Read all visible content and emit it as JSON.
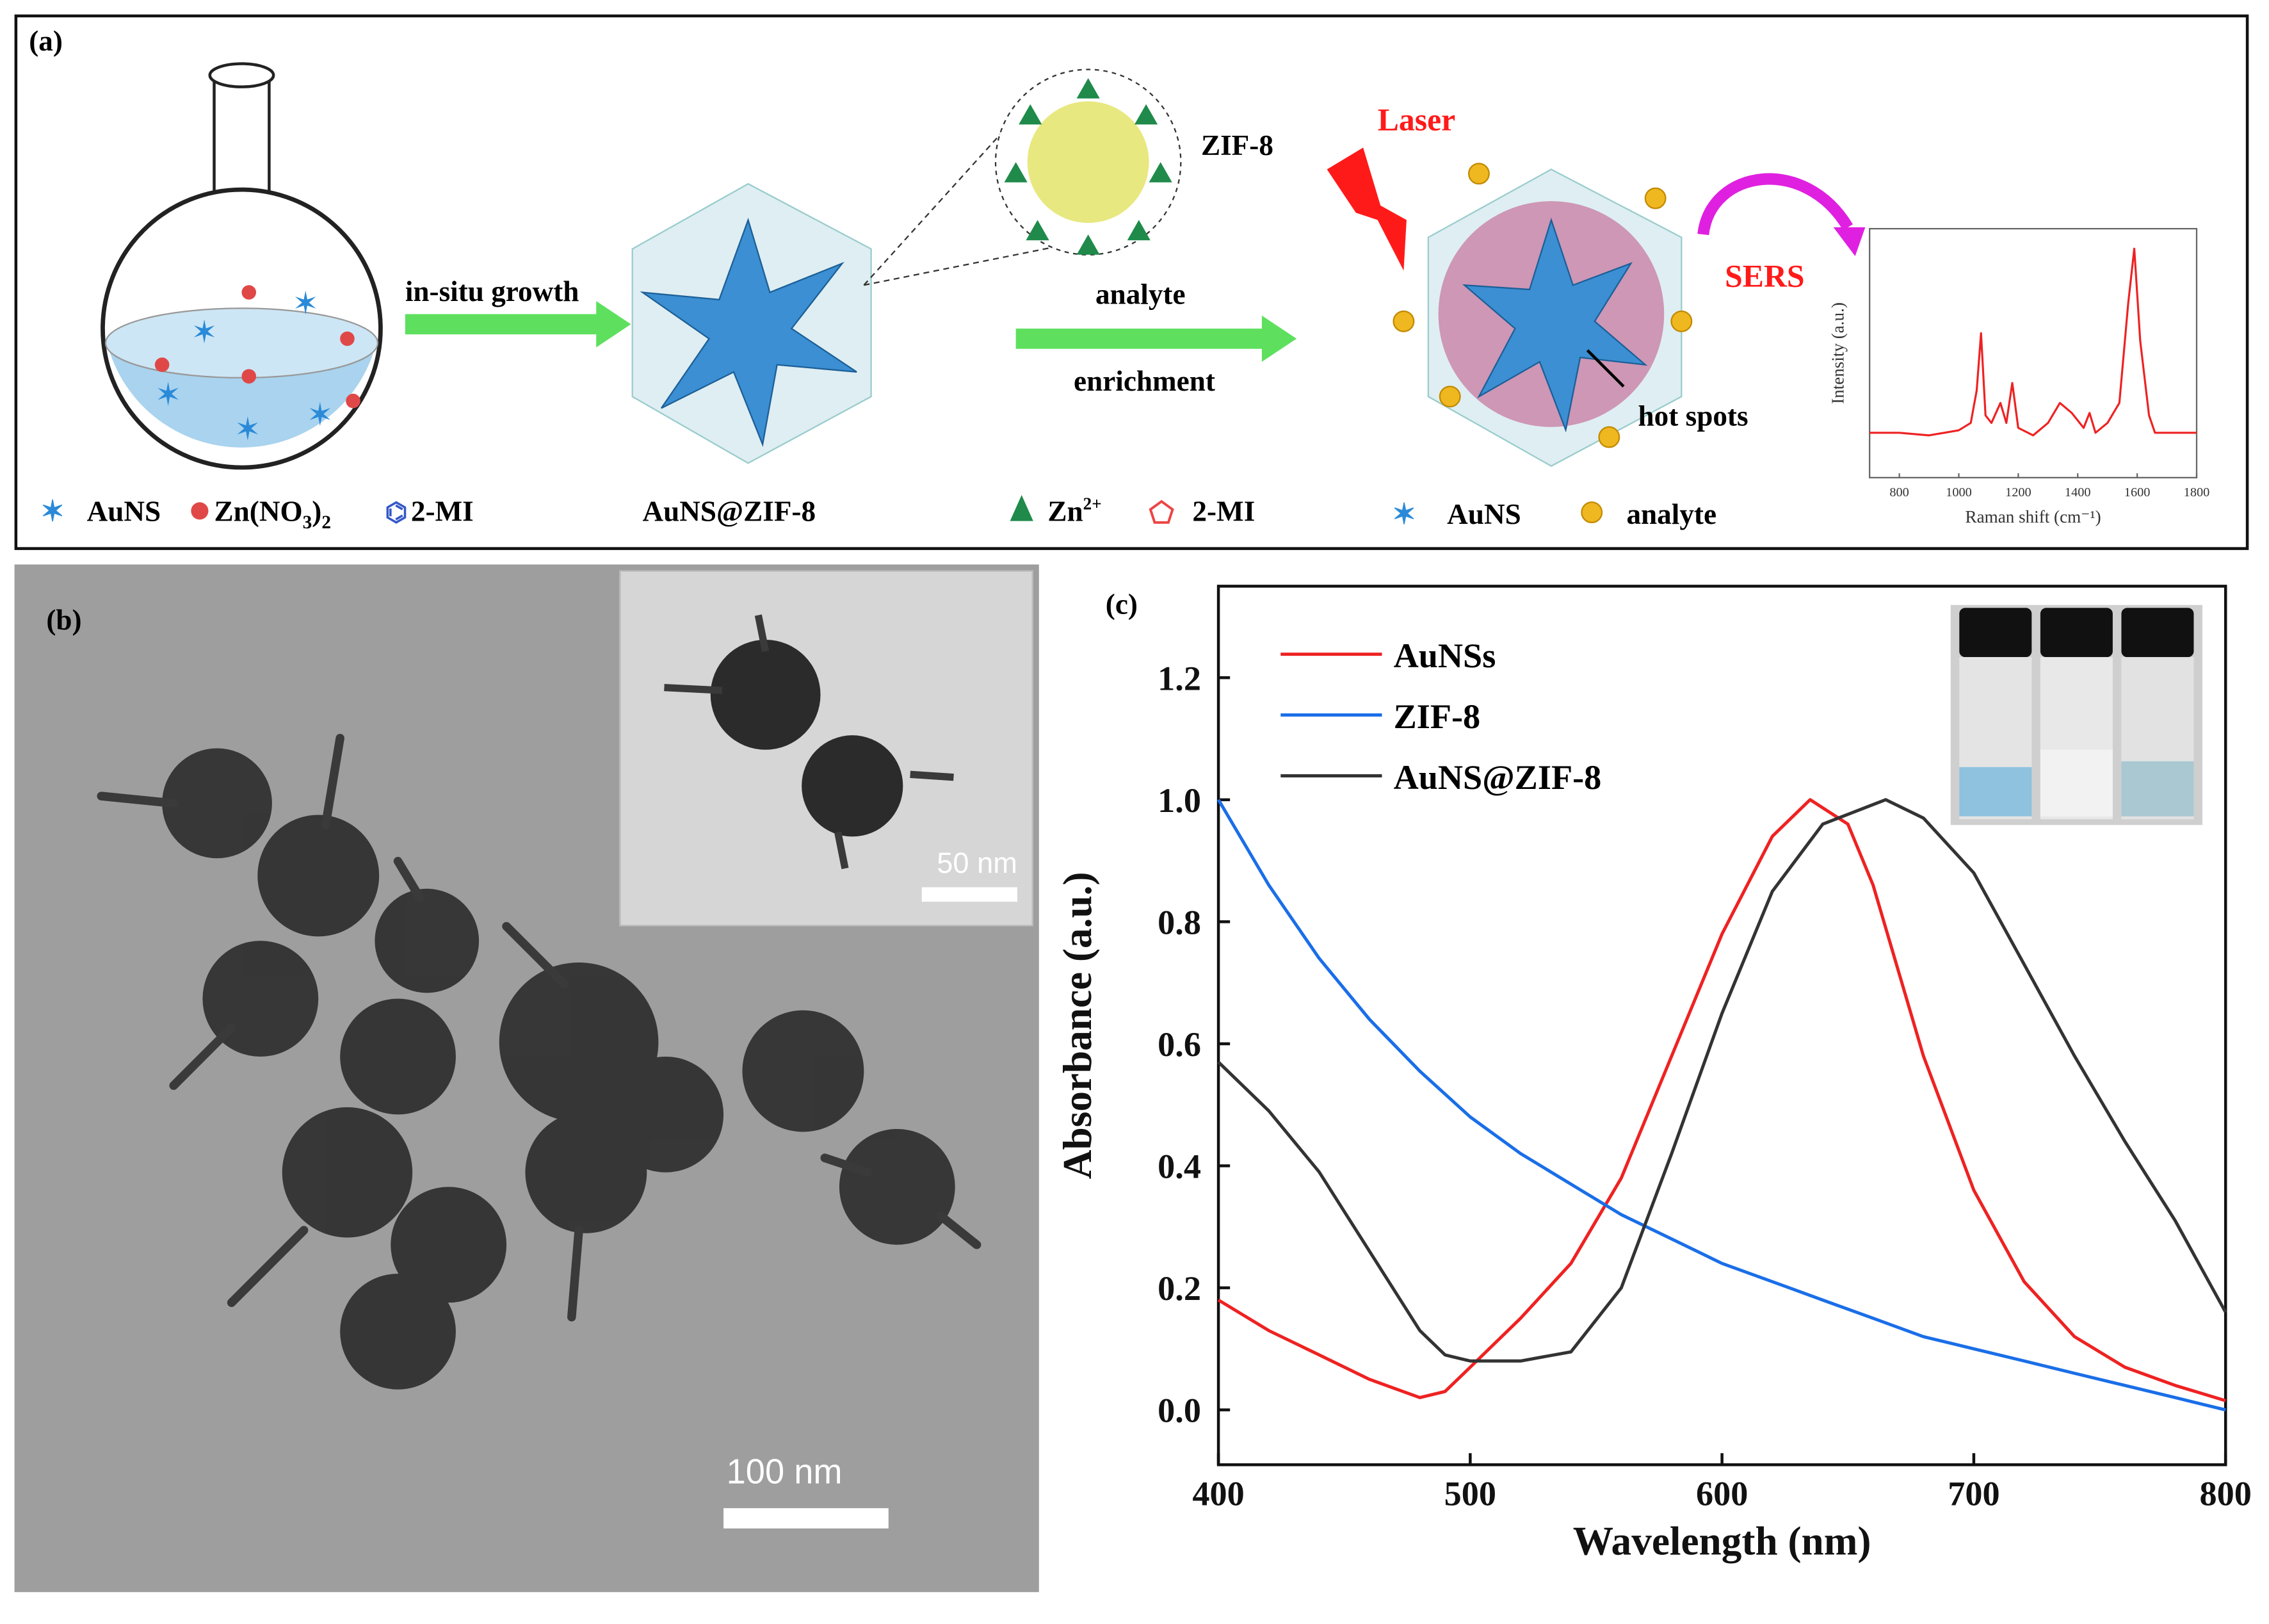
{
  "panel_a": {
    "label": "(a)",
    "step1": "in-situ growth",
    "zif8_label": "ZIF-8",
    "laser": "Laser",
    "step2_line1": "analyte",
    "step2_line2": "enrichment",
    "sers": "SERS",
    "hot_spots": "hot spots",
    "legend1": {
      "aunS": "AuNS",
      "zn": "Zn(NO",
      "zn_sub": "3",
      "zn_close": ")",
      "zn_sub2": "2",
      "mi": "2-MI"
    },
    "legend2": "AuNS@ZIF-8",
    "legend3": {
      "zn": "Zn",
      "zn_sup": "2+",
      "mi": "2-MI"
    },
    "legend4": {
      "aunS": "AuNS",
      "analyte": "analyte"
    },
    "colors": {
      "arrow": "#5ee05e",
      "laser": "#ff1a1a",
      "sers_arrow": "#e020e0",
      "aunS": "#2a8ad8",
      "analyte": "#f0b820",
      "zn": "#1f8a4a"
    }
  },
  "panel_b": {
    "label": "(b)",
    "inset_scale": "50 nm",
    "main_scale": "100 nm"
  },
  "chart_data": [
    {
      "type": "line",
      "panel": "(c)",
      "xlabel": "Wavelength (nm)",
      "ylabel": "Absorbance (a.u.)",
      "xlim": [
        400,
        800
      ],
      "ylim": [
        -0.09,
        1.35
      ],
      "xticks": [
        "400",
        "500",
        "600",
        "700",
        "800"
      ],
      "yticks": [
        "0.0",
        "0.2",
        "0.4",
        "0.6",
        "0.8",
        "1.0",
        "1.2"
      ],
      "grid": false,
      "legend": "top-left",
      "series": [
        {
          "name": "AuNSs",
          "color": "#ee2222",
          "x": [
            400,
            420,
            440,
            460,
            480,
            490,
            500,
            520,
            540,
            560,
            580,
            600,
            620,
            635,
            650,
            660,
            680,
            700,
            720,
            740,
            760,
            780,
            800
          ],
          "y": [
            0.18,
            0.13,
            0.09,
            0.05,
            0.02,
            0.03,
            0.07,
            0.15,
            0.24,
            0.38,
            0.58,
            0.78,
            0.94,
            1.0,
            0.96,
            0.86,
            0.58,
            0.36,
            0.21,
            0.12,
            0.07,
            0.04,
            0.015
          ]
        },
        {
          "name": "ZIF-8",
          "color": "#1a6ee8",
          "x": [
            400,
            420,
            440,
            460,
            480,
            500,
            520,
            540,
            560,
            580,
            600,
            620,
            640,
            660,
            680,
            700,
            720,
            740,
            760,
            780,
            800
          ],
          "y": [
            1.0,
            0.86,
            0.74,
            0.64,
            0.555,
            0.48,
            0.42,
            0.37,
            0.32,
            0.28,
            0.24,
            0.21,
            0.18,
            0.15,
            0.12,
            0.1,
            0.08,
            0.06,
            0.04,
            0.02,
            0.0
          ]
        },
        {
          "name": "AuNS@ZIF-8",
          "color": "#333333",
          "x": [
            400,
            420,
            440,
            460,
            480,
            490,
            500,
            520,
            540,
            560,
            580,
            600,
            620,
            640,
            665,
            680,
            700,
            720,
            740,
            760,
            780,
            800
          ],
          "y": [
            0.57,
            0.49,
            0.39,
            0.26,
            0.13,
            0.09,
            0.08,
            0.08,
            0.095,
            0.2,
            0.42,
            0.65,
            0.85,
            0.96,
            1.0,
            0.97,
            0.88,
            0.73,
            0.58,
            0.44,
            0.31,
            0.16
          ]
        }
      ]
    },
    {
      "type": "line",
      "panel": "(a) inset",
      "xlabel": "Raman shift (cm⁻¹)",
      "ylabel": "Intensity (a.u.)",
      "xlim": [
        700,
        1800
      ],
      "ylim": [
        0,
        1
      ],
      "xticks": [
        "800",
        "1000",
        "1200",
        "1400",
        "1600",
        "1800"
      ],
      "series": [
        {
          "color": "#ee2222",
          "x": [
            700,
            800,
            900,
            1000,
            1040,
            1060,
            1075,
            1090,
            1110,
            1140,
            1160,
            1180,
            1200,
            1250,
            1300,
            1340,
            1380,
            1420,
            1440,
            1460,
            1500,
            1540,
            1570,
            1590,
            1610,
            1640,
            1660,
            1700,
            1800
          ],
          "y": [
            0.18,
            0.18,
            0.17,
            0.19,
            0.22,
            0.35,
            0.58,
            0.25,
            0.22,
            0.3,
            0.22,
            0.38,
            0.2,
            0.17,
            0.22,
            0.3,
            0.26,
            0.2,
            0.26,
            0.18,
            0.22,
            0.3,
            0.7,
            0.92,
            0.55,
            0.25,
            0.18,
            0.18,
            0.18
          ]
        }
      ]
    }
  ]
}
